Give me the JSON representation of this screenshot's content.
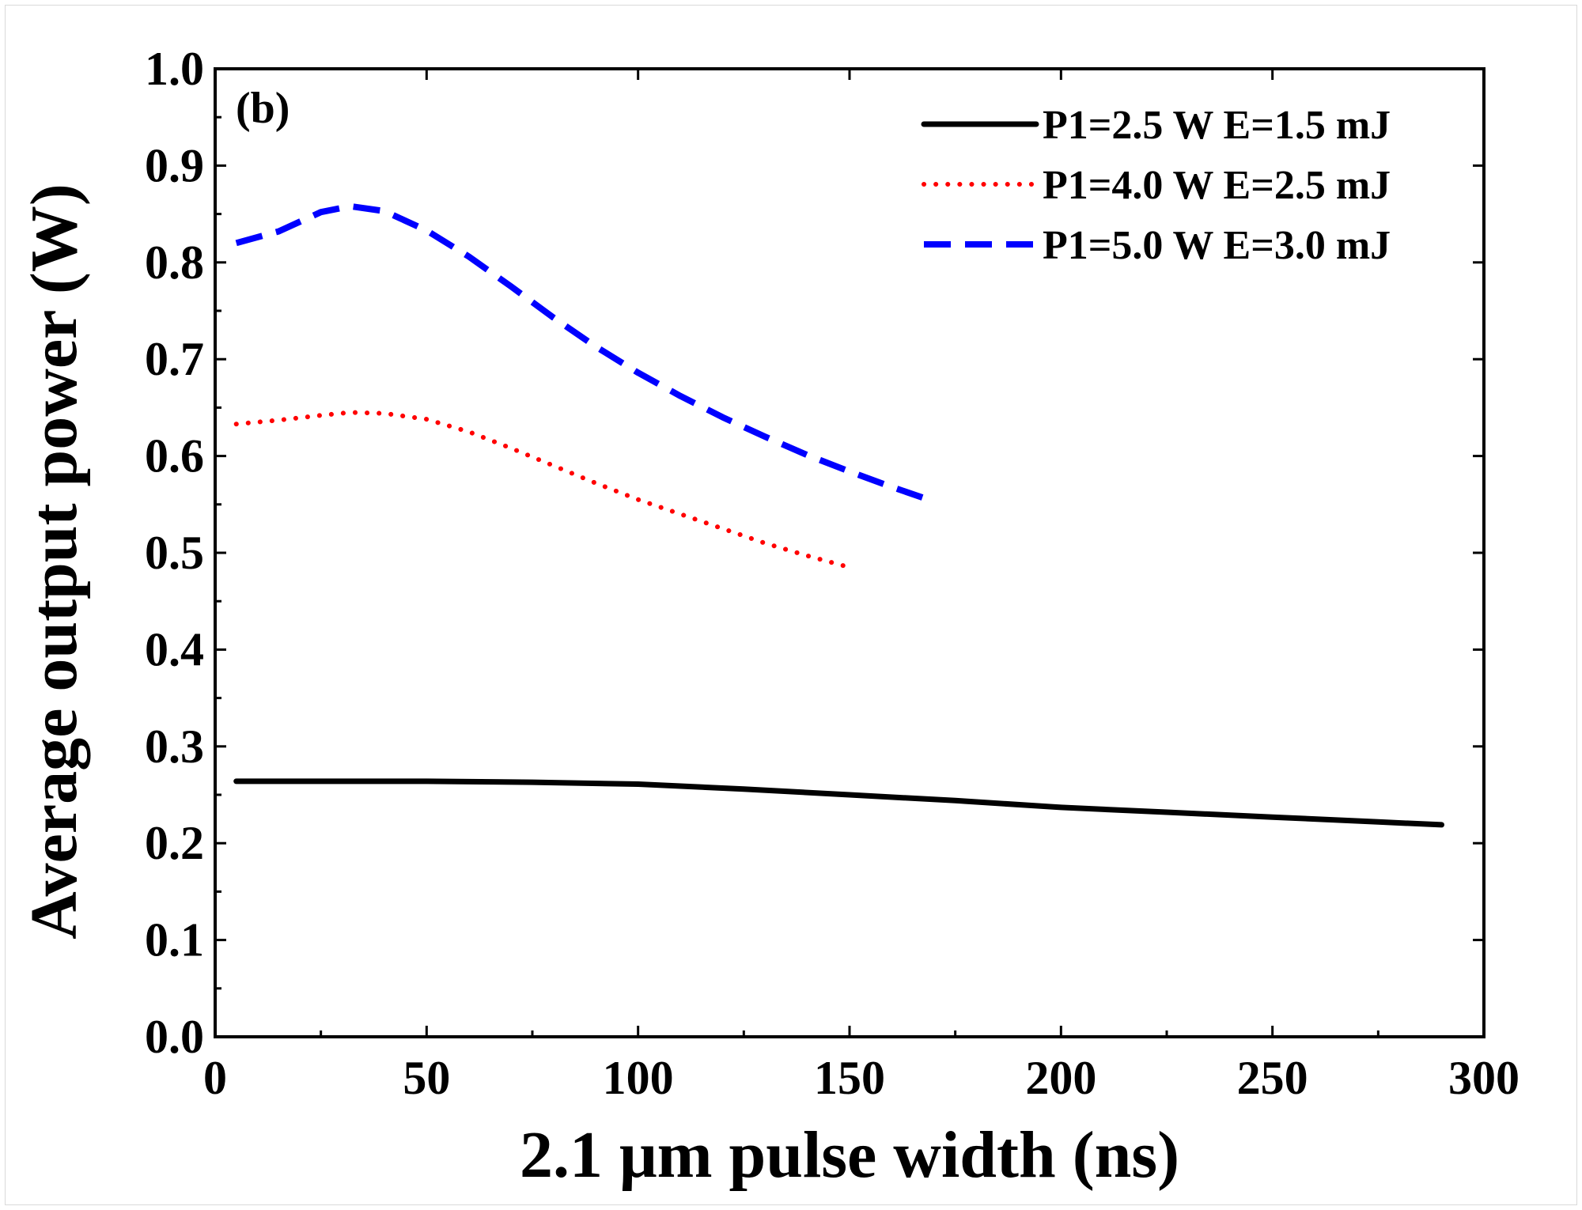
{
  "chart_data": {
    "type": "line",
    "panel_label": "(b)",
    "xlabel": "2.1 μm pulse width (ns)",
    "ylabel": "Average output power (W)",
    "xlim": [
      0,
      300
    ],
    "ylim": [
      0.0,
      1.0
    ],
    "x_ticks": [
      0,
      50,
      100,
      150,
      200,
      250,
      300
    ],
    "x_tick_labels": [
      "0",
      "50",
      "100",
      "150",
      "200",
      "250",
      "300"
    ],
    "x_minor_ticks": [
      25,
      75,
      125,
      175,
      225,
      275
    ],
    "y_ticks": [
      0.0,
      0.1,
      0.2,
      0.3,
      0.4,
      0.5,
      0.6,
      0.7,
      0.8,
      0.9,
      1.0
    ],
    "y_tick_labels": [
      "0.0",
      "0.1",
      "0.2",
      "0.3",
      "0.4",
      "0.5",
      "0.6",
      "0.7",
      "0.8",
      "0.9",
      "1.0"
    ],
    "y_minor_ticks": [
      0.05,
      0.15,
      0.25,
      0.35,
      0.45,
      0.55,
      0.65,
      0.75,
      0.85,
      0.95
    ],
    "legend_position": "top-right",
    "series": [
      {
        "name": "P1=2.5 W E=1.5 mJ",
        "color": "#000000",
        "style": "solid",
        "x": [
          5,
          25,
          50,
          75,
          100,
          125,
          150,
          175,
          200,
          225,
          250,
          275,
          290
        ],
        "y": [
          0.264,
          0.264,
          0.264,
          0.263,
          0.261,
          0.256,
          0.25,
          0.244,
          0.237,
          0.232,
          0.227,
          0.222,
          0.219
        ]
      },
      {
        "name": "P1=4.0 W E=2.5 mJ",
        "color": "#ff0000",
        "style": "dotted",
        "x": [
          5,
          15,
          25,
          32,
          40,
          50,
          60,
          70,
          80,
          90,
          100,
          110,
          120,
          130,
          140,
          150
        ],
        "y": [
          0.633,
          0.637,
          0.642,
          0.645,
          0.644,
          0.638,
          0.625,
          0.608,
          0.59,
          0.572,
          0.555,
          0.54,
          0.525,
          0.51,
          0.497,
          0.485
        ]
      },
      {
        "name": "P1=5.0 W E=3.0 mJ",
        "color": "#0000ff",
        "style": "dashed",
        "x": [
          5,
          15,
          25,
          32,
          40,
          50,
          60,
          70,
          80,
          90,
          100,
          110,
          120,
          130,
          140,
          150,
          160,
          170
        ],
        "y": [
          0.82,
          0.832,
          0.852,
          0.858,
          0.853,
          0.833,
          0.806,
          0.775,
          0.743,
          0.713,
          0.686,
          0.662,
          0.64,
          0.62,
          0.601,
          0.584,
          0.568,
          0.553
        ]
      }
    ]
  }
}
